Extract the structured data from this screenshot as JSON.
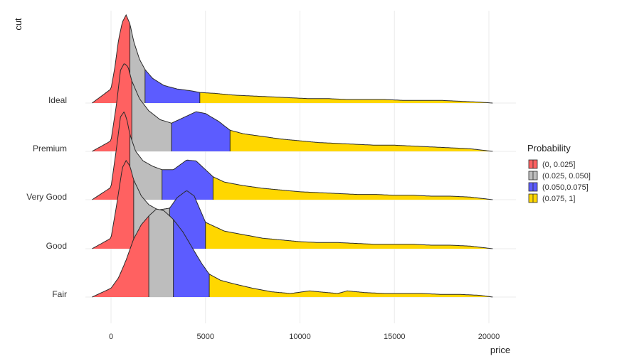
{
  "chart_data": {
    "type": "ridgeline-density",
    "x_axis": {
      "title": "price",
      "ticks": [
        0,
        5000,
        10000,
        15000,
        20000
      ],
      "tick_labels": [
        "0",
        "5000",
        "10000",
        "15000",
        "20000"
      ],
      "range": [
        -1000,
        21500
      ]
    },
    "y_axis": {
      "title": "cut",
      "categories": [
        "Fair",
        "Good",
        "Very Good",
        "Premium",
        "Ideal"
      ]
    },
    "legend": {
      "title": "Probability",
      "position": "right",
      "entries": [
        {
          "label": "(0, 0.025]",
          "color": "#ff6161"
        },
        {
          "label": "(0.025, 0.050]",
          "color": "#bdbdbd"
        },
        {
          "label": "(0.050,0.075]",
          "color": "#5c5cff"
        },
        {
          "label": "(0.075, 1]",
          "color": "#ffd700"
        }
      ]
    },
    "ridges": [
      {
        "cut": "Fair",
        "quantile_breaks": [
          2000,
          3300,
          5200
        ],
        "density_x": [
          -1000,
          0,
          400,
          800,
          1200,
          1600,
          2000,
          2400,
          2800,
          3300,
          3800,
          4300,
          4800,
          5200,
          5800,
          6500,
          7500,
          8500,
          9500,
          10500,
          11000,
          12000,
          12500,
          13500,
          14500,
          15500,
          16500,
          17500,
          18500,
          19500,
          20200
        ],
        "density_y": [
          0,
          0.1,
          0.22,
          0.42,
          0.66,
          0.82,
          0.92,
          1.0,
          0.98,
          0.88,
          0.74,
          0.56,
          0.38,
          0.26,
          0.19,
          0.15,
          0.1,
          0.06,
          0.04,
          0.07,
          0.06,
          0.04,
          0.07,
          0.05,
          0.04,
          0.04,
          0.04,
          0.03,
          0.03,
          0.02,
          0
        ]
      },
      {
        "cut": "Good",
        "quantile_breaks": [
          1200,
          3100,
          5000
        ],
        "density_x": [
          -1000,
          0,
          300,
          600,
          800,
          1000,
          1200,
          1600,
          2000,
          2500,
          3100,
          3500,
          4000,
          4400,
          4800,
          5000,
          6000,
          7000,
          8000,
          9000,
          10000,
          11000,
          12000,
          13000,
          14000,
          15000,
          16000,
          17000,
          18000,
          19000,
          20200
        ],
        "density_y": [
          0,
          0.12,
          0.5,
          0.92,
          1.0,
          0.94,
          0.78,
          0.6,
          0.5,
          0.44,
          0.46,
          0.58,
          0.66,
          0.6,
          0.4,
          0.3,
          0.2,
          0.16,
          0.12,
          0.1,
          0.08,
          0.07,
          0.07,
          0.06,
          0.05,
          0.05,
          0.05,
          0.04,
          0.04,
          0.03,
          0
        ]
      },
      {
        "cut": "Very Good",
        "quantile_breaks": [
          1000,
          2700,
          5400
        ],
        "density_x": [
          -1000,
          0,
          300,
          500,
          700,
          850,
          1000,
          1300,
          1700,
          2200,
          2700,
          3300,
          4000,
          4500,
          5000,
          5400,
          6000,
          7000,
          8000,
          9000,
          10000,
          11000,
          12000,
          13000,
          14000,
          15000,
          16000,
          17000,
          18000,
          19000,
          20200
        ],
        "density_y": [
          0,
          0.14,
          0.6,
          0.94,
          1.0,
          0.9,
          0.74,
          0.55,
          0.44,
          0.38,
          0.34,
          0.34,
          0.45,
          0.44,
          0.34,
          0.26,
          0.2,
          0.16,
          0.13,
          0.11,
          0.09,
          0.08,
          0.07,
          0.06,
          0.06,
          0.05,
          0.05,
          0.04,
          0.04,
          0.03,
          0
        ]
      },
      {
        "cut": "Premium",
        "quantile_breaks": [
          1100,
          3200,
          6300
        ],
        "density_x": [
          -1000,
          0,
          300,
          500,
          700,
          900,
          1100,
          1500,
          2000,
          2600,
          3200,
          3800,
          4500,
          5000,
          5700,
          6300,
          7000,
          8000,
          9000,
          10000,
          11000,
          12000,
          13000,
          14000,
          15000,
          16000,
          17000,
          18000,
          19000,
          20200
        ],
        "density_y": [
          0,
          0.12,
          0.55,
          0.92,
          1.0,
          0.96,
          0.8,
          0.6,
          0.46,
          0.36,
          0.32,
          0.38,
          0.45,
          0.43,
          0.34,
          0.24,
          0.2,
          0.17,
          0.14,
          0.12,
          0.1,
          0.09,
          0.08,
          0.07,
          0.07,
          0.06,
          0.05,
          0.04,
          0.03,
          0
        ]
      },
      {
        "cut": "Ideal",
        "quantile_breaks": [
          1000,
          1800,
          4700
        ],
        "density_x": [
          -1000,
          0,
          200,
          400,
          600,
          800,
          1000,
          1200,
          1500,
          1800,
          2200,
          2800,
          3500,
          4200,
          4700,
          5500,
          6500,
          7500,
          8500,
          9500,
          10500,
          11500,
          12500,
          13500,
          14500,
          15500,
          16500,
          17500,
          18500,
          19500,
          20200
        ],
        "density_y": [
          0,
          0.16,
          0.4,
          0.72,
          0.92,
          1.0,
          0.9,
          0.7,
          0.5,
          0.38,
          0.28,
          0.2,
          0.16,
          0.14,
          0.12,
          0.11,
          0.09,
          0.08,
          0.07,
          0.06,
          0.05,
          0.05,
          0.04,
          0.04,
          0.04,
          0.03,
          0.03,
          0.03,
          0.02,
          0.01,
          0
        ]
      }
    ]
  }
}
